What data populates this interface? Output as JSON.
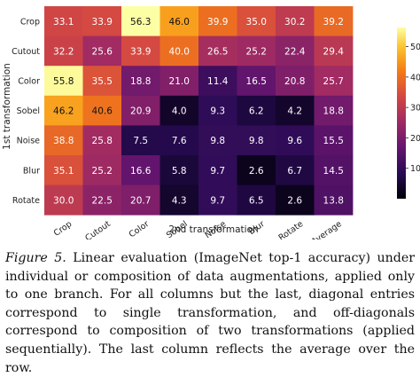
{
  "chart_data": {
    "type": "heatmap",
    "title": "",
    "xlabel": "2nd transformation",
    "ylabel": "1st transformation",
    "x_categories": [
      "Crop",
      "Cutout",
      "Color",
      "Sobel",
      "Noise",
      "Blur",
      "Rotate",
      "Average"
    ],
    "y_categories": [
      "Crop",
      "Cutout",
      "Color",
      "Sobel",
      "Noise",
      "Blur",
      "Rotate"
    ],
    "values": [
      [
        33.1,
        33.9,
        56.3,
        46.0,
        39.9,
        35.0,
        30.2,
        39.2
      ],
      [
        32.2,
        25.6,
        33.9,
        40.0,
        26.5,
        25.2,
        22.4,
        29.4
      ],
      [
        55.8,
        35.5,
        18.8,
        21.0,
        11.4,
        16.5,
        20.8,
        25.7
      ],
      [
        46.2,
        40.6,
        20.9,
        4.0,
        9.3,
        6.2,
        4.2,
        18.8
      ],
      [
        38.8,
        25.8,
        7.5,
        7.6,
        9.8,
        9.8,
        9.6,
        15.5
      ],
      [
        35.1,
        25.2,
        16.6,
        5.8,
        9.7,
        2.6,
        6.7,
        14.5
      ],
      [
        30.0,
        22.5,
        20.7,
        4.3,
        9.7,
        6.5,
        2.6,
        13.8
      ]
    ],
    "colormap": "inferno-like",
    "colorbar": {
      "min": 0,
      "max": 56.3,
      "ticks": [
        10,
        20,
        30,
        40,
        50
      ]
    }
  },
  "caption": {
    "label": "Figure 5.",
    "text": "Linear evaluation (ImageNet top-1 accuracy) under individual or composition of data augmentations, applied only to one branch. For all columns but the last, diagonal entries correspond to single transformation, and off-diagonals correspond to composition of two transformations (applied sequentially). The last column reflects the average over the row."
  }
}
